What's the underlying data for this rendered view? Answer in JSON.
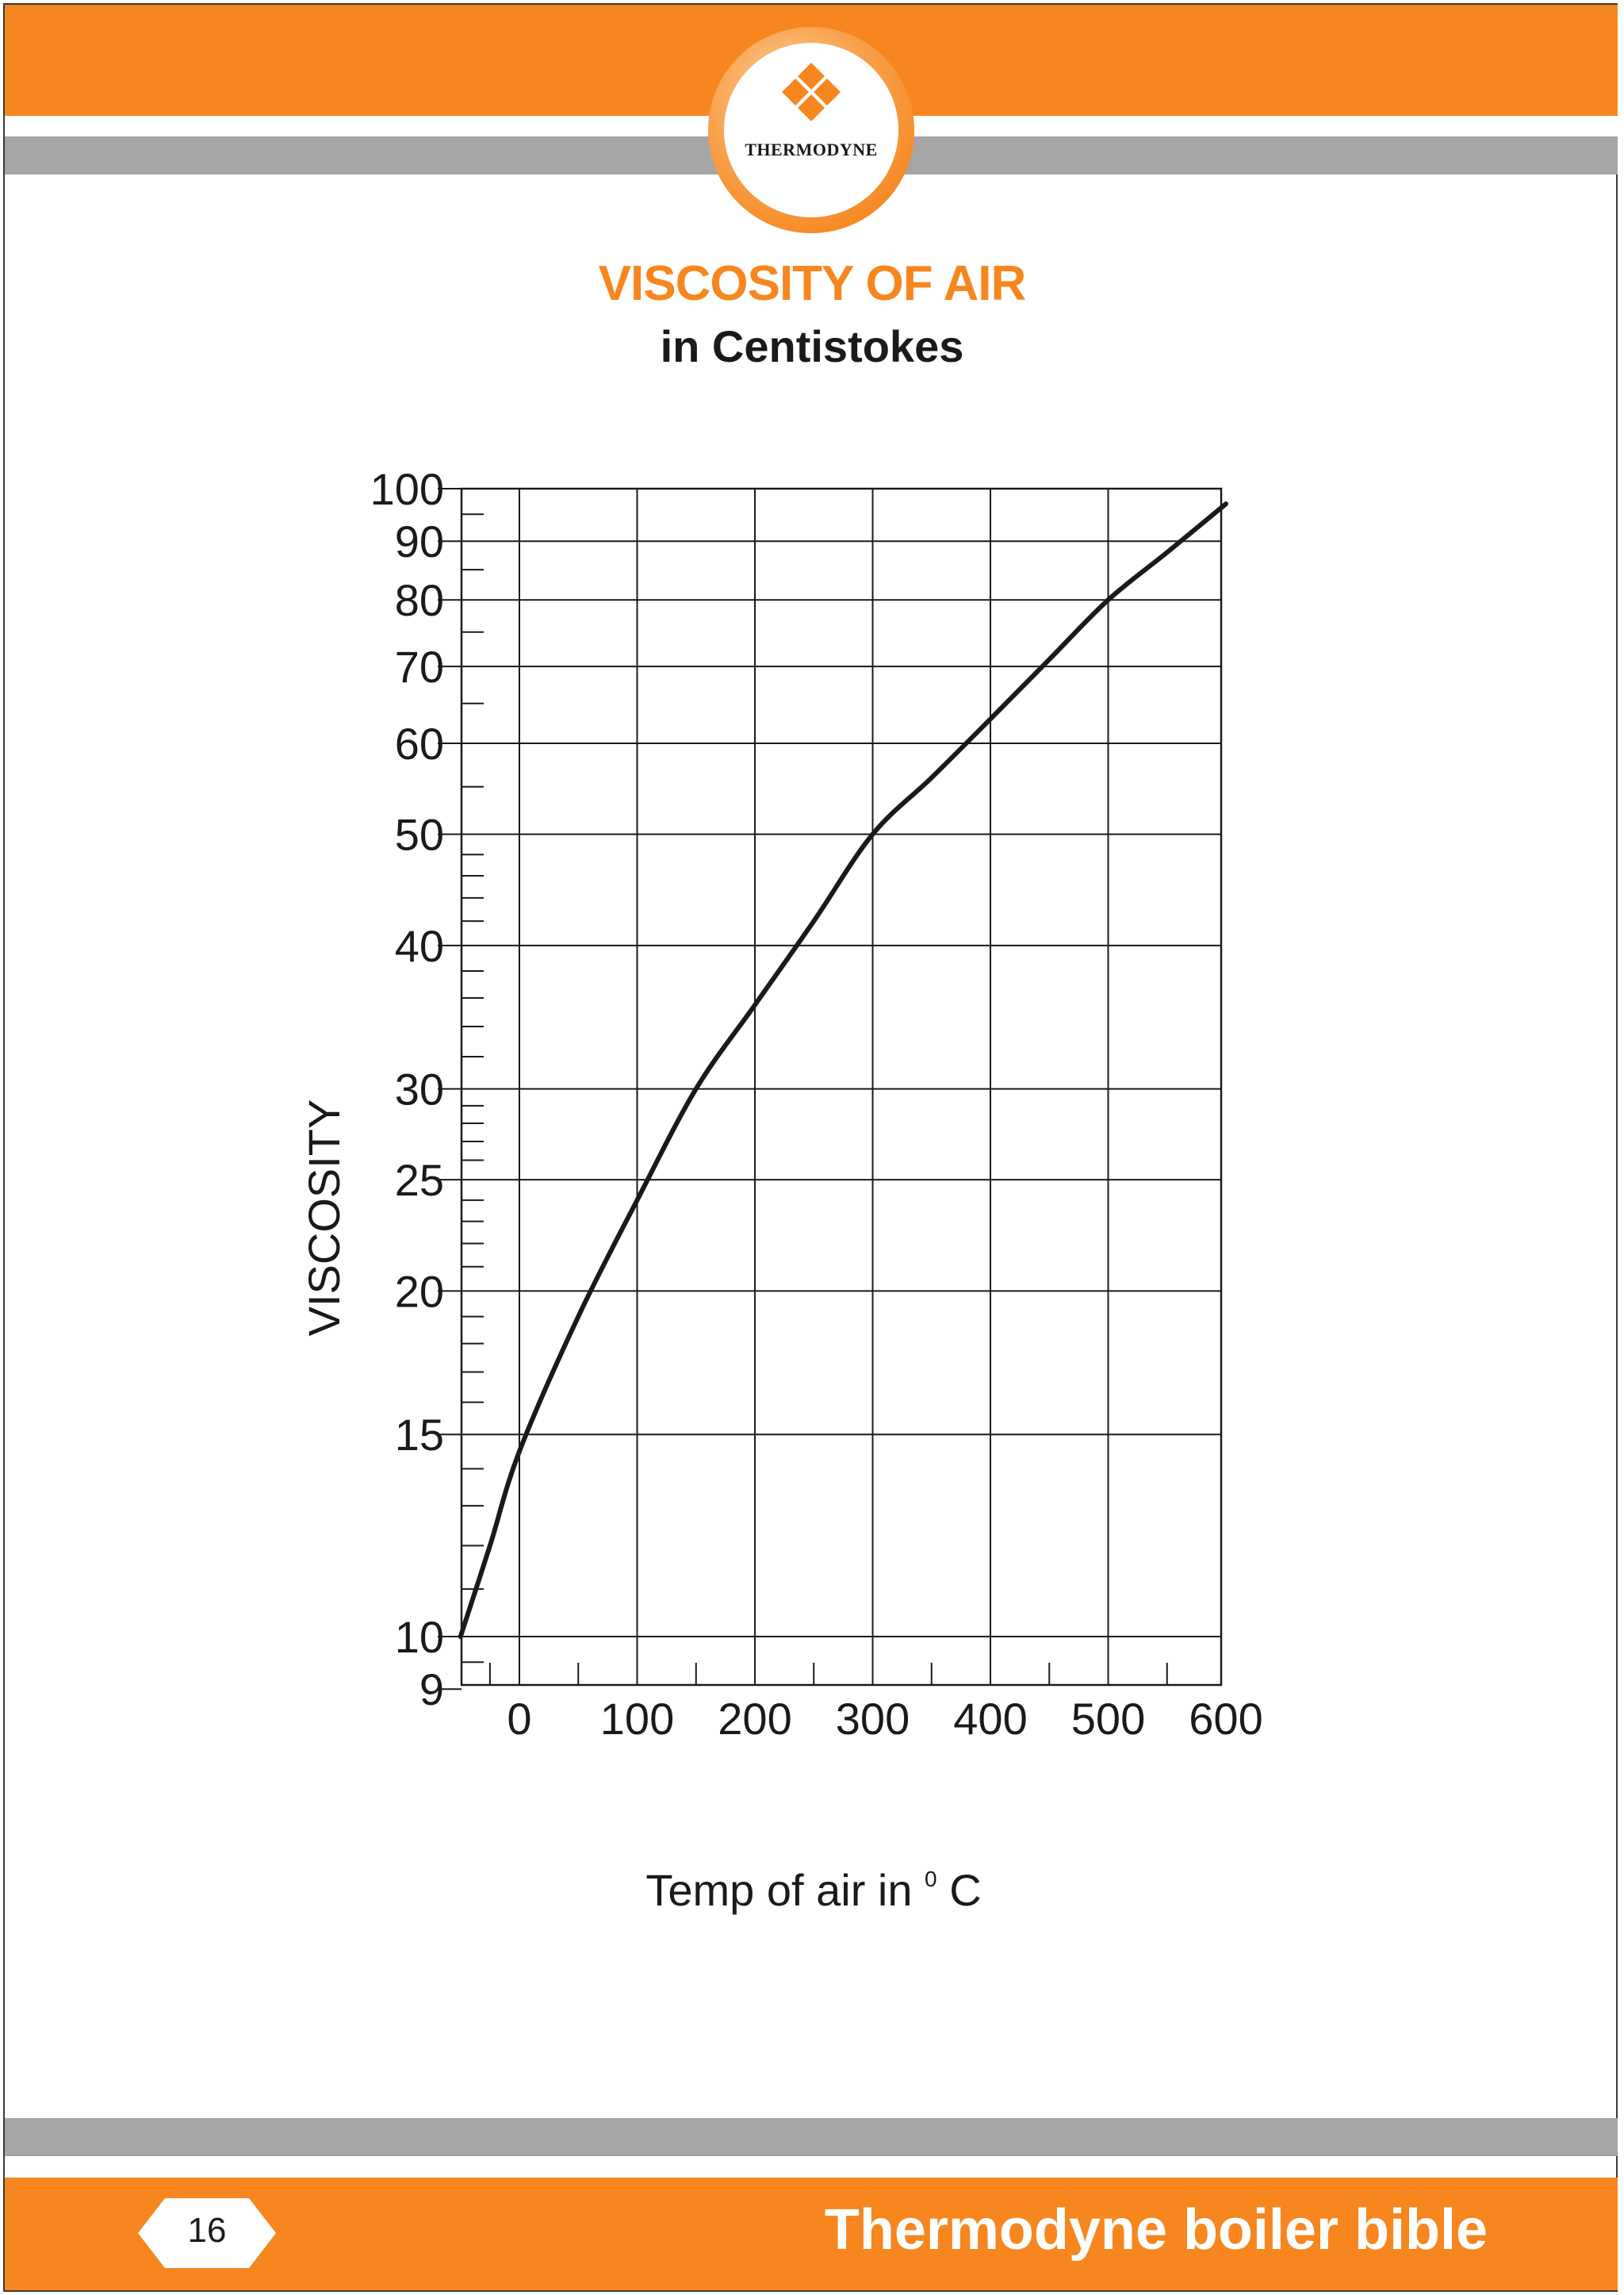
{
  "header": {
    "logo_text": "THERMODYNE",
    "brand_color": "#F7861F",
    "band_grey": "#A5A5A5",
    "logo_icon": "diamond-cluster-icon"
  },
  "title": "VISCOSITY OF AIR",
  "subtitle": "in Centistokes",
  "chart_data": {
    "type": "line",
    "title": "",
    "xlabel": "Temp of air in",
    "xlabel_sup": "0",
    "xlabel_unit": "C",
    "ylabel": "VISCOSITY",
    "y_scale": "log",
    "xlim": [
      -50,
      600
    ],
    "ylim": [
      8.2,
      100
    ],
    "x_ticks": [
      0,
      100,
      200,
      300,
      400,
      500,
      600
    ],
    "y_ticks": [
      9,
      10,
      15,
      20,
      25,
      30,
      40,
      50,
      60,
      70,
      80,
      90,
      100
    ],
    "grid": true,
    "series": [
      {
        "color": "#1a1a1a",
        "x": [
          -50,
          -25,
          0,
          50,
          100,
          150,
          200,
          250,
          300,
          350,
          400,
          450,
          500,
          550,
          600
        ],
        "y": [
          10,
          12,
          14.5,
          19,
          24,
          30,
          35.5,
          42,
          50,
          56,
          63,
          71,
          80,
          88,
          97
        ]
      }
    ]
  },
  "footer": {
    "page_number": "16",
    "book_title": "Thermodyne boiler bible"
  }
}
